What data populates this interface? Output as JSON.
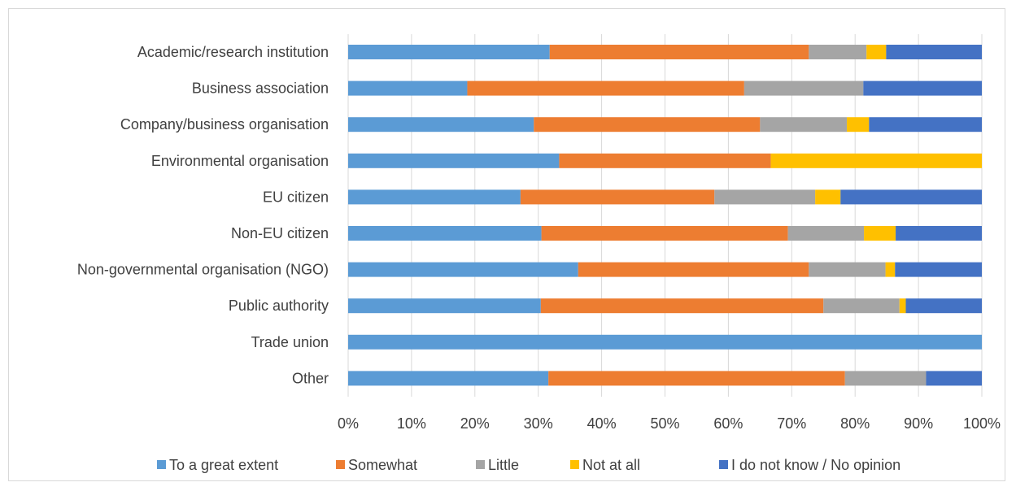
{
  "chart_data": {
    "type": "bar",
    "orientation": "horizontal",
    "stacked": "percent",
    "title": "",
    "xlabel": "",
    "ylabel": "",
    "xlim": [
      0,
      100
    ],
    "grid": true,
    "legend_position": "bottom",
    "categories": [
      "Academic/research institution",
      "Business association",
      "Company/business organisation",
      "Environmental organisation",
      "EU citizen",
      "Non-EU citizen",
      "Non-governmental organisation (NGO)",
      "Public authority",
      "Trade union",
      "Other"
    ],
    "x_ticks": [
      "0%",
      "10%",
      "20%",
      "30%",
      "40%",
      "50%",
      "60%",
      "70%",
      "80%",
      "90%",
      "100%"
    ],
    "series": [
      {
        "name": "To a great extent",
        "color": "#5b9bd5",
        "values": [
          31.8,
          18.8,
          29.3,
          33.3,
          27.2,
          30.5,
          36.3,
          30.4,
          100,
          31.6
        ]
      },
      {
        "name": "Somewhat",
        "color": "#ed7d31",
        "values": [
          40.9,
          43.7,
          35.7,
          33.4,
          30.6,
          38.9,
          36.4,
          44.6,
          0,
          46.8
        ]
      },
      {
        "name": "Little",
        "color": "#a5a5a5",
        "values": [
          9.1,
          18.8,
          13.7,
          0,
          15.9,
          12.0,
          12.1,
          12.0,
          0,
          12.8
        ]
      },
      {
        "name": "Not at all",
        "color": "#ffc000",
        "values": [
          3.1,
          0,
          3.5,
          33.3,
          4.0,
          5.0,
          1.5,
          1.0,
          0,
          0
        ]
      },
      {
        "name": "I do not know / No opinion",
        "color": "#4472c4",
        "values": [
          15.1,
          18.7,
          17.8,
          0,
          22.3,
          13.6,
          13.7,
          12.0,
          0,
          8.8
        ]
      }
    ]
  }
}
